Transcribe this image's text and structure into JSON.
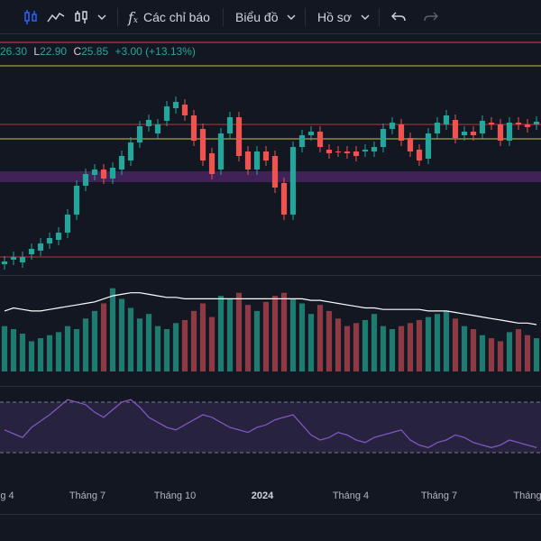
{
  "toolbar": {
    "indicators_label": "Các chỉ báo",
    "chart_label": "Biểu đồ",
    "profile_label": "Hồ sơ"
  },
  "ohlc": {
    "close_prefix_open": "26.30",
    "low_label": "L",
    "low_value": "22.90",
    "close_label": "C",
    "close_value": "25.85",
    "change": "+3.00 (+13.13%)"
  },
  "time_axis": {
    "labels": [
      "g 4",
      "Tháng 7",
      "Tháng 10",
      "2024",
      "Tháng 4",
      "Tháng 7",
      "Tháng"
    ]
  },
  "colors": {
    "up": "#26a69a",
    "down": "#ef5350",
    "up_vol": "#1f7a6f",
    "down_vol": "#8e3a44",
    "yellow_line": "#c9c43a",
    "red_line": "#f23645",
    "purple_zone": "#5a2d73",
    "rsi_line": "#7e57c2",
    "ma_line": "#ffffff"
  },
  "chart_data": {
    "type": "candlestick",
    "candles": [
      [
        0,
        255,
        258,
        252,
        248
      ],
      [
        1,
        250,
        255,
        247,
        244
      ],
      [
        2,
        253,
        262,
        247,
        244
      ],
      [
        3,
        244,
        255,
        238,
        235
      ],
      [
        4,
        240,
        249,
        232,
        230
      ],
      [
        5,
        232,
        240,
        226,
        224
      ],
      [
        6,
        228,
        236,
        220,
        218
      ],
      [
        7,
        220,
        233,
        200,
        196
      ],
      [
        8,
        200,
        210,
        168,
        160
      ],
      [
        9,
        168,
        175,
        155,
        150
      ],
      [
        10,
        156,
        165,
        150,
        146
      ],
      [
        11,
        150,
        157,
        160,
        145
      ],
      [
        12,
        160,
        180,
        148,
        145
      ],
      [
        13,
        150,
        160,
        135,
        130
      ],
      [
        14,
        140,
        150,
        120,
        112
      ],
      [
        15,
        120,
        128,
        102,
        98
      ],
      [
        16,
        102,
        110,
        95,
        88
      ],
      [
        17,
        110,
        130,
        100,
        96
      ],
      [
        18,
        96,
        108,
        80,
        75
      ],
      [
        19,
        82,
        92,
        75,
        72
      ],
      [
        20,
        78,
        90,
        90,
        72
      ],
      [
        21,
        90,
        102,
        118,
        86
      ],
      [
        22,
        105,
        118,
        140,
        95
      ],
      [
        23,
        132,
        140,
        155,
        125
      ],
      [
        24,
        150,
        158,
        110,
        105
      ],
      [
        25,
        110,
        120,
        92,
        88
      ],
      [
        26,
        92,
        100,
        135,
        88
      ],
      [
        27,
        130,
        140,
        150,
        120
      ],
      [
        28,
        150,
        162,
        130,
        122
      ],
      [
        29,
        130,
        140,
        140,
        122
      ],
      [
        30,
        135,
        148,
        170,
        130
      ],
      [
        31,
        165,
        175,
        200,
        160
      ],
      [
        32,
        200,
        205,
        125,
        118
      ],
      [
        33,
        125,
        135,
        112,
        108
      ],
      [
        34,
        112,
        130,
        108,
        100
      ],
      [
        35,
        108,
        125,
        125,
        100
      ],
      [
        36,
        128,
        132,
        132,
        115
      ],
      [
        37,
        130,
        140,
        130,
        122
      ],
      [
        38,
        130,
        135,
        132,
        125
      ],
      [
        39,
        130,
        138,
        135,
        124
      ],
      [
        40,
        130,
        135,
        128,
        120
      ],
      [
        41,
        130,
        140,
        125,
        118
      ],
      [
        42,
        125,
        136,
        105,
        100
      ],
      [
        43,
        105,
        118,
        98,
        90
      ],
      [
        44,
        100,
        105,
        118,
        95
      ],
      [
        45,
        115,
        125,
        130,
        108
      ],
      [
        46,
        128,
        132,
        140,
        120
      ],
      [
        47,
        138,
        152,
        110,
        100
      ],
      [
        48,
        110,
        118,
        98,
        88
      ],
      [
        49,
        100,
        110,
        90,
        88
      ],
      [
        50,
        95,
        108,
        115,
        90
      ],
      [
        51,
        112,
        118,
        108,
        100
      ],
      [
        52,
        108,
        115,
        112,
        100
      ],
      [
        53,
        110,
        118,
        96,
        92
      ],
      [
        54,
        98,
        106,
        100,
        92
      ],
      [
        55,
        100,
        110,
        118,
        95
      ],
      [
        56,
        118,
        128,
        98,
        92
      ],
      [
        57,
        98,
        104,
        100,
        90
      ],
      [
        58,
        100,
        108,
        103,
        94
      ],
      [
        59,
        100,
        108,
        97,
        90
      ]
    ],
    "volume": [
      30,
      28,
      25,
      20,
      22,
      24,
      26,
      30,
      28,
      35,
      40,
      45,
      55,
      48,
      42,
      35,
      38,
      30,
      28,
      32,
      34,
      40,
      45,
      36,
      50,
      48,
      52,
      44,
      40,
      46,
      50,
      52,
      48,
      45,
      38,
      44,
      40,
      35,
      30,
      32,
      34,
      38,
      30,
      28,
      30,
      32,
      34,
      36,
      38,
      40,
      35,
      30,
      28,
      24,
      22,
      20,
      26,
      28,
      24,
      22
    ],
    "rsi": [
      48,
      45,
      42,
      50,
      55,
      60,
      66,
      72,
      70,
      68,
      62,
      58,
      64,
      70,
      72,
      66,
      58,
      54,
      50,
      48,
      52,
      56,
      60,
      58,
      54,
      50,
      48,
      46,
      50,
      52,
      56,
      58,
      60,
      52,
      44,
      40,
      42,
      46,
      44,
      40,
      38,
      42,
      44,
      46,
      48,
      40,
      36,
      34,
      38,
      40,
      44,
      42,
      38,
      36,
      34,
      36,
      40,
      38,
      36,
      34
    ],
    "ma_volume": [
      40,
      42,
      41,
      40,
      40,
      41,
      42,
      43,
      44,
      45,
      46,
      48,
      50,
      51,
      52,
      52,
      51,
      50,
      49,
      49,
      48,
      48,
      48,
      48,
      48,
      48,
      48,
      48,
      48,
      48,
      48,
      48,
      48,
      48,
      47,
      47,
      46,
      45,
      44,
      43,
      42,
      42,
      41,
      41,
      41,
      41,
      41,
      40,
      40,
      40,
      39,
      38,
      37,
      36,
      35,
      34,
      33,
      32,
      32,
      31
    ]
  }
}
